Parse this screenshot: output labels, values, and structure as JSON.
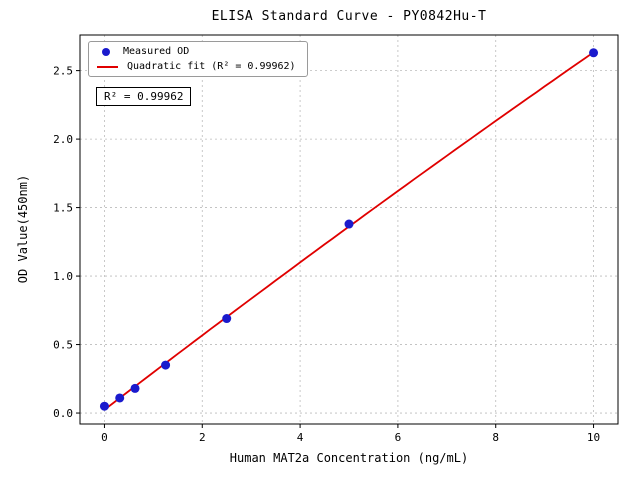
{
  "chart_data": {
    "type": "scatter",
    "title": "ELISA Standard Curve - PY0842Hu-T",
    "xlabel": "Human MAT2a Concentration (ng/mL)",
    "ylabel": "OD Value(450nm)",
    "xlim": [
      -0.5,
      10.5
    ],
    "ylim": [
      -0.08,
      2.76
    ],
    "xticks": [
      0,
      2,
      4,
      6,
      8,
      10
    ],
    "yticks": [
      0.0,
      0.5,
      1.0,
      1.5,
      2.0,
      2.5
    ],
    "grid": true,
    "background": "#ffffff",
    "axis_color": "#000000",
    "grid_color": "#bbbbbb",
    "series": [
      {
        "name": "Measured OD",
        "type": "scatter",
        "color": "#1a1acd",
        "x": [
          0,
          0.312,
          0.625,
          1.25,
          2.5,
          5,
          10
        ],
        "y": [
          0.05,
          0.11,
          0.18,
          0.35,
          0.69,
          1.38,
          2.63
        ]
      },
      {
        "name": "Quadratic fit",
        "type": "quadratic-fit-line",
        "color": "#e00000"
      }
    ],
    "legend": {
      "position": "upper-left",
      "entries": [
        {
          "label": "Measured OD",
          "marker": "dot",
          "color": "#1a1acd"
        },
        {
          "label": "Quadratic fit (R² = 0.99962)",
          "marker": "line",
          "color": "#e00000"
        }
      ]
    },
    "annotation": {
      "text": "R² = 0.99962"
    }
  }
}
